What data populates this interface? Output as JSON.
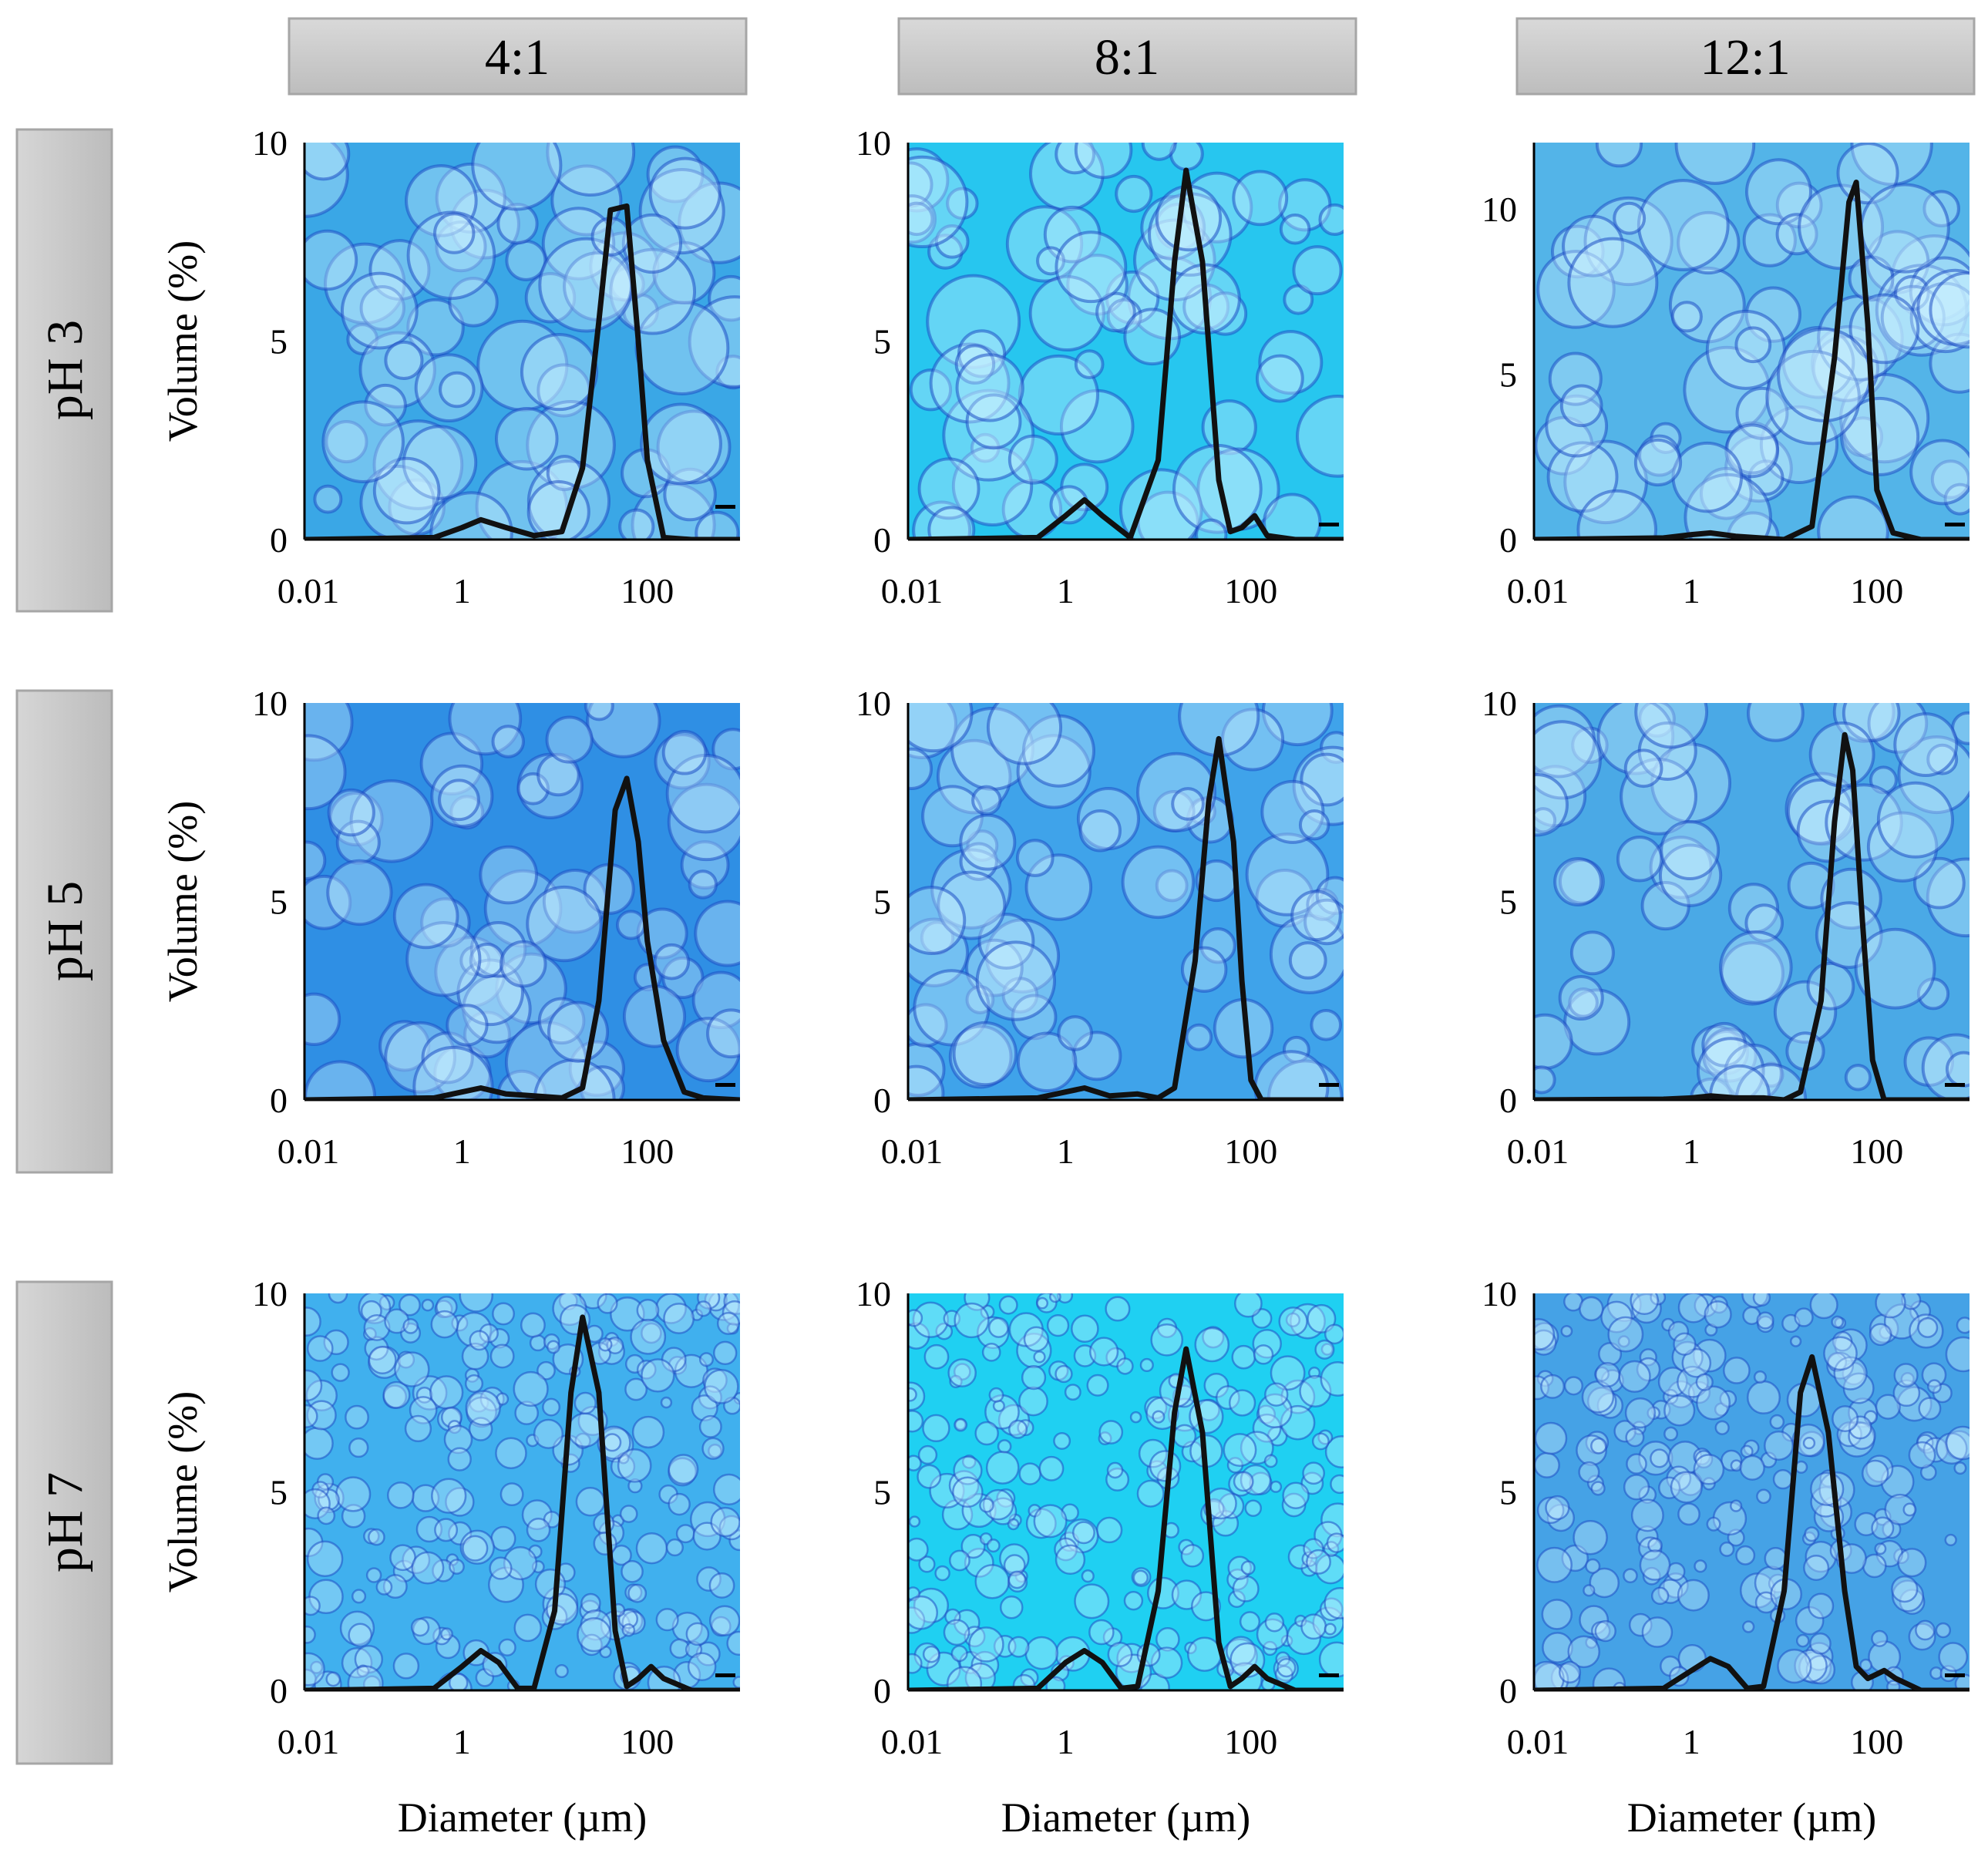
{
  "headers": {
    "columns": [
      "4:1",
      "8:1",
      "12:1"
    ],
    "rows": [
      "pH 3",
      "pH 5",
      "pH 7"
    ]
  },
  "colors": {
    "header_fill": "#c9c9c9",
    "header_edge": "#a6a6a6",
    "curve": "#111111",
    "micrograph_outline": "#1e4fc4",
    "micrograph_bg_variants": [
      "#3aa7e6",
      "#27c6ef",
      "#53b4e8",
      "#2f8fe4",
      "#3fa3ea",
      "#4aa9e6",
      "#40b0ee",
      "#1fd0f2",
      "#45a2e6"
    ]
  },
  "chart_data": [
    {
      "type": "line",
      "panel": "pH 3 / 4:1",
      "xscale": "log",
      "xlim": [
        0.02,
        1000
      ],
      "ylim": [
        0,
        10
      ],
      "xticks": [
        "0.01",
        "1",
        "100"
      ],
      "yticks": [
        "0",
        "5",
        "10"
      ],
      "ylabel": "Volume (%)",
      "xlabel": "",
      "x": [
        0.02,
        0.5,
        1.0,
        1.6,
        3.0,
        6.0,
        12.0,
        20.0,
        30.0,
        40.0,
        60.0,
        80.0,
        100.0,
        150.0,
        300.0,
        1000.0
      ],
      "y": [
        0,
        0.05,
        0.3,
        0.5,
        0.3,
        0.1,
        0.2,
        1.8,
        5.5,
        8.3,
        8.4,
        5.0,
        2.0,
        0.05,
        0,
        0
      ]
    },
    {
      "type": "line",
      "panel": "pH 3 / 8:1",
      "xscale": "log",
      "xlim": [
        0.02,
        1000
      ],
      "ylim": [
        0,
        10
      ],
      "xticks": [
        "0.01",
        "1",
        "100"
      ],
      "yticks": [
        "0",
        "5",
        "10"
      ],
      "ylabel": "",
      "xlabel": "",
      "x": [
        0.02,
        0.5,
        1.0,
        1.6,
        2.5,
        5.0,
        10.0,
        15.0,
        20.0,
        30.0,
        45.0,
        60.0,
        80.0,
        110.0,
        150.0,
        300.0,
        1000.0
      ],
      "y": [
        0,
        0.05,
        0.6,
        1.0,
        0.6,
        0.05,
        2.0,
        7.0,
        9.3,
        7.0,
        1.5,
        0.2,
        0.3,
        0.6,
        0.1,
        0,
        0
      ]
    },
    {
      "type": "line",
      "panel": "pH 3 / 12:1",
      "xscale": "log",
      "xlim": [
        0.02,
        1000
      ],
      "ylim": [
        0,
        12
      ],
      "xticks": [
        "0.01",
        "1",
        "100"
      ],
      "yticks": [
        "0",
        "5",
        "10"
      ],
      "ylabel": "",
      "xlabel": "",
      "x": [
        0.02,
        0.5,
        1.0,
        1.6,
        3.0,
        10.0,
        20.0,
        35.0,
        50.0,
        60.0,
        80.0,
        100.0,
        150.0,
        300.0,
        1000.0
      ],
      "y": [
        0,
        0.05,
        0.15,
        0.2,
        0.1,
        0,
        0.4,
        5.5,
        10.2,
        10.8,
        6.5,
        1.5,
        0.2,
        0,
        0
      ]
    },
    {
      "type": "line",
      "panel": "pH 5 / 4:1",
      "xscale": "log",
      "xlim": [
        0.02,
        1000
      ],
      "ylim": [
        0,
        10
      ],
      "xticks": [
        "0.01",
        "1",
        "100"
      ],
      "yticks": [
        "0",
        "5",
        "10"
      ],
      "ylabel": "Volume (%)",
      "xlabel": "",
      "x": [
        0.02,
        0.5,
        1.0,
        1.6,
        3.0,
        6.0,
        12.0,
        20.0,
        30.0,
        45.0,
        60.0,
        80.0,
        100.0,
        150.0,
        250.0,
        400.0,
        1000.0
      ],
      "y": [
        0,
        0.05,
        0.2,
        0.3,
        0.15,
        0.1,
        0.05,
        0.3,
        2.5,
        7.3,
        8.1,
        6.5,
        4.0,
        1.5,
        0.2,
        0.05,
        0
      ]
    },
    {
      "type": "line",
      "panel": "pH 5 / 8:1",
      "xscale": "log",
      "xlim": [
        0.02,
        1000
      ],
      "ylim": [
        0,
        10
      ],
      "xticks": [
        "0.01",
        "1",
        "100"
      ],
      "yticks": [
        "0",
        "5",
        "10"
      ],
      "ylabel": "",
      "xlabel": "",
      "x": [
        0.02,
        0.5,
        1.0,
        1.6,
        3.0,
        6.0,
        10.0,
        15.0,
        25.0,
        35.0,
        45.0,
        65.0,
        80.0,
        100.0,
        130.0,
        1000.0
      ],
      "y": [
        0,
        0.05,
        0.2,
        0.3,
        0.1,
        0.15,
        0.05,
        0.3,
        3.5,
        7.5,
        9.1,
        6.5,
        3.0,
        0.5,
        0,
        0
      ]
    },
    {
      "type": "line",
      "panel": "pH 5 / 12:1",
      "xscale": "log",
      "xlim": [
        0.02,
        1000
      ],
      "ylim": [
        0,
        10
      ],
      "xticks": [
        "0.01",
        "1",
        "100"
      ],
      "yticks": [
        "0",
        "5",
        "10"
      ],
      "ylabel": "",
      "xlabel": "",
      "x": [
        0.02,
        0.5,
        1.0,
        1.6,
        3.0,
        6.0,
        10.0,
        15.0,
        25.0,
        35.0,
        45.0,
        55.0,
        70.0,
        90.0,
        120.0,
        1000.0
      ],
      "y": [
        0,
        0.02,
        0.05,
        0.1,
        0.05,
        0.05,
        0,
        0.2,
        2.5,
        7.0,
        9.2,
        8.3,
        4.5,
        1.0,
        0,
        0
      ]
    },
    {
      "type": "line",
      "panel": "pH 7 / 4:1",
      "xscale": "log",
      "xlim": [
        0.02,
        1000
      ],
      "ylim": [
        0,
        10
      ],
      "xticks": [
        "0.01",
        "1",
        "100"
      ],
      "yticks": [
        "0",
        "5",
        "10"
      ],
      "ylabel": "Volume (%)",
      "xlabel": "Diameter (µm)",
      "x": [
        0.02,
        0.5,
        1.0,
        1.6,
        2.5,
        4.0,
        6.0,
        10.0,
        15.0,
        20.0,
        30.0,
        45.0,
        60.0,
        80.0,
        110.0,
        150.0,
        300.0,
        1000.0
      ],
      "y": [
        0,
        0.05,
        0.6,
        1.0,
        0.7,
        0.05,
        0.05,
        2.0,
        7.5,
        9.4,
        7.5,
        1.5,
        0.1,
        0.3,
        0.6,
        0.3,
        0,
        0
      ]
    },
    {
      "type": "line",
      "panel": "pH 7 / 8:1",
      "xscale": "log",
      "xlim": [
        0.02,
        1000
      ],
      "ylim": [
        0,
        10
      ],
      "xticks": [
        "0.01",
        "1",
        "100"
      ],
      "yticks": [
        "0",
        "5",
        "10"
      ],
      "ylabel": "",
      "xlabel": "Diameter (µm)",
      "x": [
        0.02,
        0.5,
        1.0,
        1.6,
        2.5,
        4.0,
        6.0,
        10.0,
        15.0,
        20.0,
        30.0,
        45.0,
        60.0,
        80.0,
        110.0,
        150.0,
        300.0,
        1000.0
      ],
      "y": [
        0,
        0.05,
        0.7,
        1.0,
        0.7,
        0.05,
        0.1,
        2.5,
        7.0,
        8.6,
        6.5,
        1.2,
        0.1,
        0.3,
        0.6,
        0.3,
        0,
        0
      ]
    },
    {
      "type": "line",
      "panel": "pH 7 / 12:1",
      "xscale": "log",
      "xlim": [
        0.02,
        1000
      ],
      "ylim": [
        0,
        10
      ],
      "xticks": [
        "0.01",
        "1",
        "100"
      ],
      "yticks": [
        "0",
        "5",
        "10"
      ],
      "ylabel": "",
      "xlabel": "Diameter (µm)",
      "x": [
        0.02,
        0.5,
        1.0,
        1.6,
        2.5,
        4.0,
        6.0,
        10.0,
        15.0,
        20.0,
        30.0,
        45.0,
        60.0,
        80.0,
        120.0,
        160.0,
        300.0,
        1000.0
      ],
      "y": [
        0,
        0.05,
        0.5,
        0.8,
        0.6,
        0.05,
        0.1,
        2.5,
        7.5,
        8.4,
        6.5,
        2.5,
        0.6,
        0.3,
        0.5,
        0.3,
        0,
        0
      ]
    }
  ]
}
